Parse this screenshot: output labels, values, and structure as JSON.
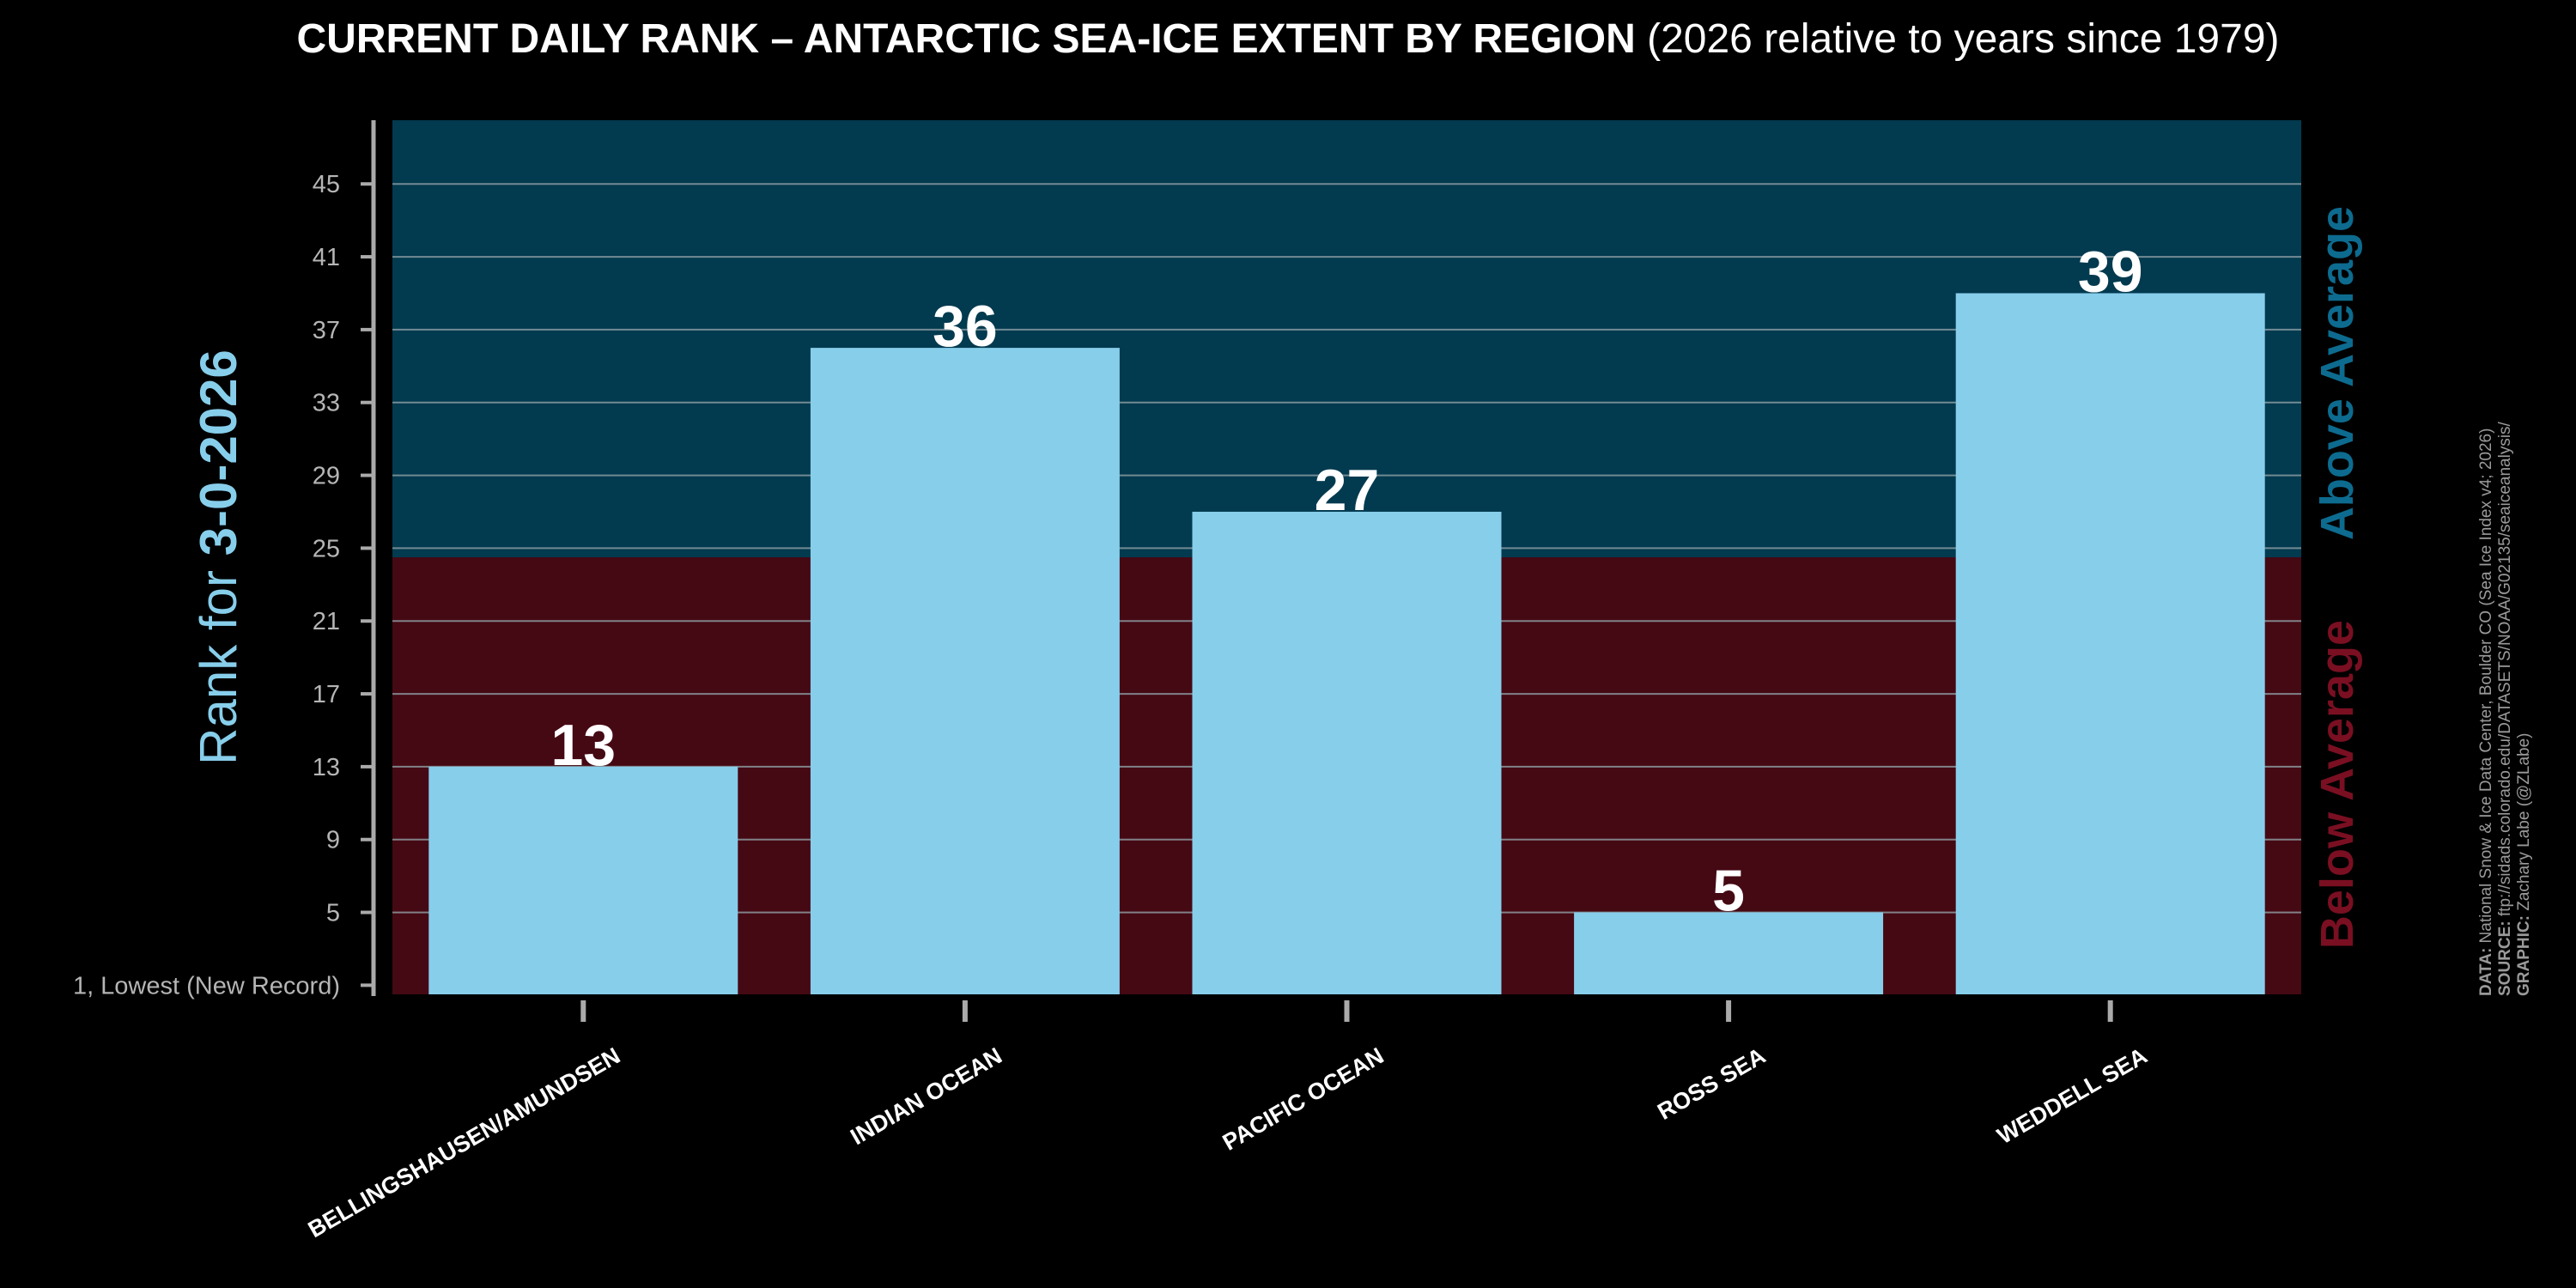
{
  "title": {
    "main": "CURRENT DAILY RANK – ANTARCTIC SEA-ICE EXTENT BY REGION",
    "sub": "(2026 relative to years since 1979)"
  },
  "colors": {
    "background": "#000000",
    "above_region": "#023a4f",
    "below_region": "#450914",
    "bar": "#87ceeb",
    "grid": "#8fa0a6",
    "label_above": "#0d6b8f",
    "label_below": "#7a0f22",
    "axis_text": "#b5b5b5",
    "ylabel": "#87ceeb"
  },
  "chart_data": {
    "type": "bar",
    "title": "CURRENT DAILY RANK – ANTARCTIC SEA-ICE EXTENT BY REGION (2026 relative to years since 1979)",
    "categories": [
      "BELLINGSHAUSEN/AMUNDSEN",
      "INDIAN OCEAN",
      "PACIFIC OCEAN",
      "ROSS SEA",
      "WEDDELL SEA"
    ],
    "values": [
      13,
      36,
      27,
      5,
      39
    ],
    "ylabel_prefix": "Rank for ",
    "ylabel_date": "3-0-2026",
    "yticks": [
      1,
      5,
      9,
      13,
      17,
      21,
      25,
      29,
      33,
      37,
      41,
      45
    ],
    "ytick_labels": [
      "1, Lowest (New Record)",
      "5",
      "9",
      "13",
      "17",
      "21",
      "25",
      "29",
      "33",
      "37",
      "41",
      "45"
    ],
    "ylim": [
      0.5,
      48.5
    ],
    "average_threshold": 24.5,
    "above_label": "Above Average",
    "below_label": "Below Average",
    "grid": true
  },
  "credits": {
    "data_label": "DATA:",
    "data_text": "National Snow & Ice Data Center, Boulder CO (Sea Ice Index v4; 2026)",
    "source_label": "SOURCE:",
    "source_text": "ftp://sidads.colorado.edu/DATASETS/NOAA/G02135/seaiceanalysis/",
    "graphic_label": "GRAPHIC:",
    "graphic_text": "Zachary Labe (@ZLabe)"
  }
}
